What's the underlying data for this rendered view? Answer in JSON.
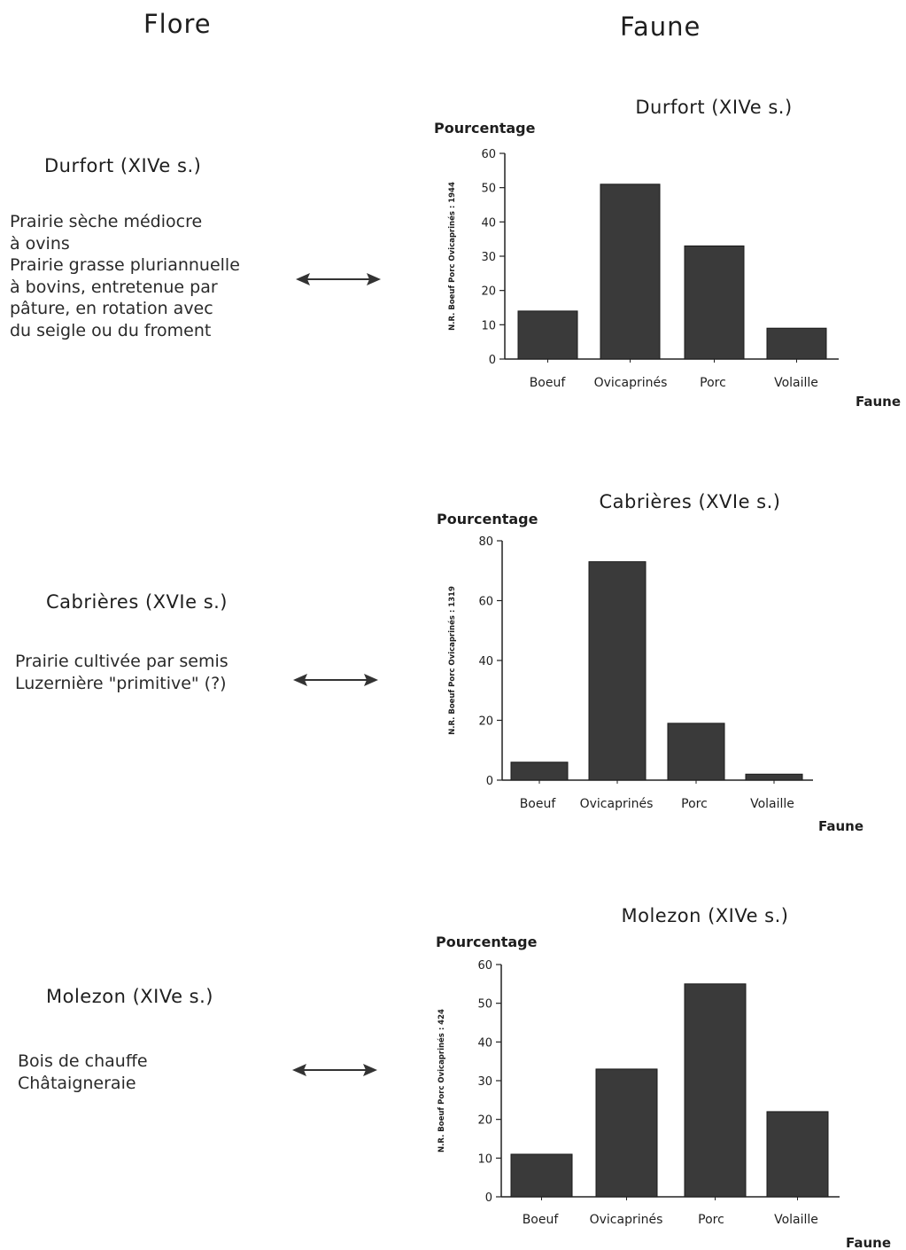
{
  "headers": {
    "flore": "Flore",
    "faune": "Faune"
  },
  "sites": [
    {
      "title": "Durfort (XIVe s.)",
      "flore_lines": [
        "Prairie sèche médiocre",
        "à ovins",
        "Prairie grasse pluriannuelle",
        "à bovins, entretenue  par",
        "pâture, en rotation avec",
        "du seigle ou du froment"
      ]
    },
    {
      "title": "Cabrières (XVIe s.)",
      "flore_lines": [
        "Prairie cultivée par semis",
        "Luzernière \"primitive\" (?)"
      ]
    },
    {
      "title": "Molezon (XIVe s.)",
      "flore_lines": [
        "Bois de chauffe",
        "Châtaigneraie"
      ]
    }
  ],
  "chart_data": [
    {
      "type": "bar",
      "title": "Durfort (XIVe s.)",
      "ylabel": "Pourcentage",
      "side_label": "N.R. Boeuf Porc Ovicaprinés : 1944",
      "xlabel": "Faune",
      "categories": [
        "Boeuf",
        "Ovicaprinés",
        "Porc",
        "Volaille"
      ],
      "values": [
        14,
        51,
        33,
        9
      ],
      "ylim": [
        0,
        60
      ],
      "yticks": [
        0,
        10,
        20,
        30,
        40,
        50,
        60
      ],
      "grid": false,
      "bar_color": "#3a3a3a"
    },
    {
      "type": "bar",
      "title": "Cabrières (XVIe s.)",
      "ylabel": "Pourcentage",
      "side_label": "N.R. Boeuf Porc Ovicaprinés : 1319",
      "xlabel": "Faune",
      "categories": [
        "Boeuf",
        "Ovicaprinés",
        "Porc",
        "Volaille"
      ],
      "values": [
        6,
        73,
        19,
        2
      ],
      "ylim": [
        0,
        80
      ],
      "yticks": [
        0,
        20,
        40,
        60,
        80
      ],
      "grid": false,
      "bar_color": "#3a3a3a"
    },
    {
      "type": "bar",
      "title": "Molezon (XIVe s.)",
      "ylabel": "Pourcentage",
      "side_label": "N.R. Boeuf Porc Ovicaprinés : 424",
      "xlabel": "Faune",
      "categories": [
        "Boeuf",
        "Ovicaprinés",
        "Porc",
        "Volaille"
      ],
      "values": [
        11,
        33,
        55,
        22
      ],
      "ylim": [
        0,
        60
      ],
      "yticks": [
        0,
        10,
        20,
        30,
        40,
        50,
        60
      ],
      "grid": false,
      "bar_color": "#3a3a3a"
    }
  ]
}
